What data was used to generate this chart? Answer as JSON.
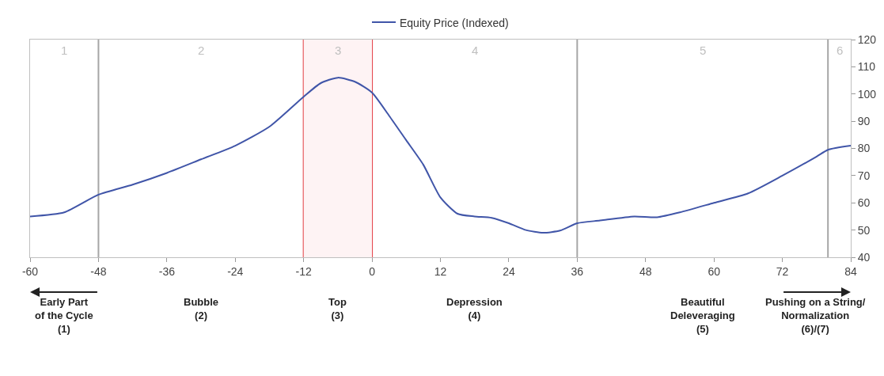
{
  "chart_data": {
    "type": "line",
    "x": [
      -60,
      -54,
      -48,
      -42,
      -36,
      -30,
      -24,
      -18,
      -12,
      -9,
      -6,
      -3,
      0,
      3,
      6,
      9,
      12,
      15,
      18,
      21,
      24,
      27,
      30,
      33,
      36,
      40,
      46,
      50,
      54,
      60,
      66,
      72,
      78,
      80,
      84
    ],
    "series": [
      {
        "name": "Equity Price (Indexed)",
        "color": "#4055a8",
        "values": [
          55,
          56.5,
          63,
          66.7,
          71,
          76,
          81,
          88,
          99,
          104,
          106,
          104.5,
          100.5,
          92,
          83,
          74,
          62,
          56,
          55,
          54.5,
          52.5,
          50,
          49,
          49.8,
          52.5,
          53.5,
          55,
          54.7,
          56.5,
          60,
          63.5,
          70,
          77,
          79.5,
          81
        ]
      }
    ],
    "xlim": [
      -60,
      84
    ],
    "xticks": [
      -60,
      -48,
      -36,
      -24,
      -12,
      0,
      12,
      24,
      36,
      48,
      60,
      72,
      84
    ],
    "ylim": [
      40,
      120
    ],
    "yticks": [
      40,
      50,
      60,
      70,
      80,
      90,
      100,
      110,
      120
    ],
    "grid": false,
    "legend": "top",
    "marker": "none",
    "line_style": "solid",
    "ref_lines": [
      {
        "axis": "x",
        "value": -48,
        "color": "#a6a6a6"
      },
      {
        "axis": "x",
        "value": 36,
        "color": "#a6a6a6"
      },
      {
        "axis": "x",
        "value": 80,
        "color": "#a6a6a6"
      }
    ],
    "bands": [
      {
        "axis": "x",
        "from": -12,
        "to": 0,
        "label": "3",
        "color": "#e0282e"
      }
    ],
    "annotations": [
      "1",
      "2",
      "4",
      "5",
      "6",
      "Early Part\nof the Cycle\n(1)",
      "Bubble\n(2)",
      "Top\n(3)",
      "Depression\n(4)",
      "Beautiful\nDeleveraging\n(5)",
      "Pushing on a String/\nNormalization\n(6)/(7)"
    ]
  }
}
